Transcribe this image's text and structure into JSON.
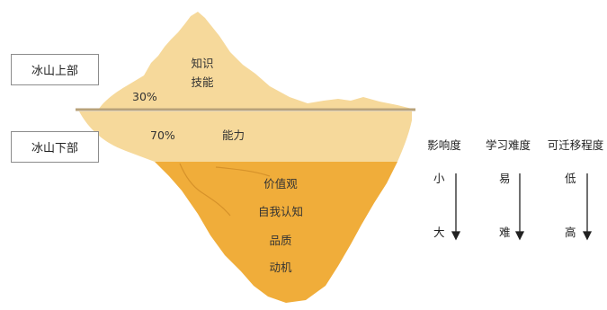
{
  "zones": {
    "above": "冰山上部",
    "below": "冰山下部"
  },
  "iceberg": {
    "above_words": [
      "知识",
      "技能"
    ],
    "above_percent": "30%",
    "below_percent": "70%",
    "middle_word": "能力",
    "deep_words": [
      "价值观",
      "自我认知",
      "品质",
      "动机"
    ]
  },
  "scales": [
    {
      "title": "影响度",
      "top": "小",
      "bottom": "大"
    },
    {
      "title": "学习难度",
      "top": "易",
      "bottom": "难"
    },
    {
      "title": "可迁移程度",
      "top": "低",
      "bottom": "高"
    }
  ],
  "colors": {
    "ice_light": "#f6d99b",
    "ice_deep": "#f0ad3a",
    "waterline": "#b8a27a",
    "border": "#8c8c8c"
  }
}
